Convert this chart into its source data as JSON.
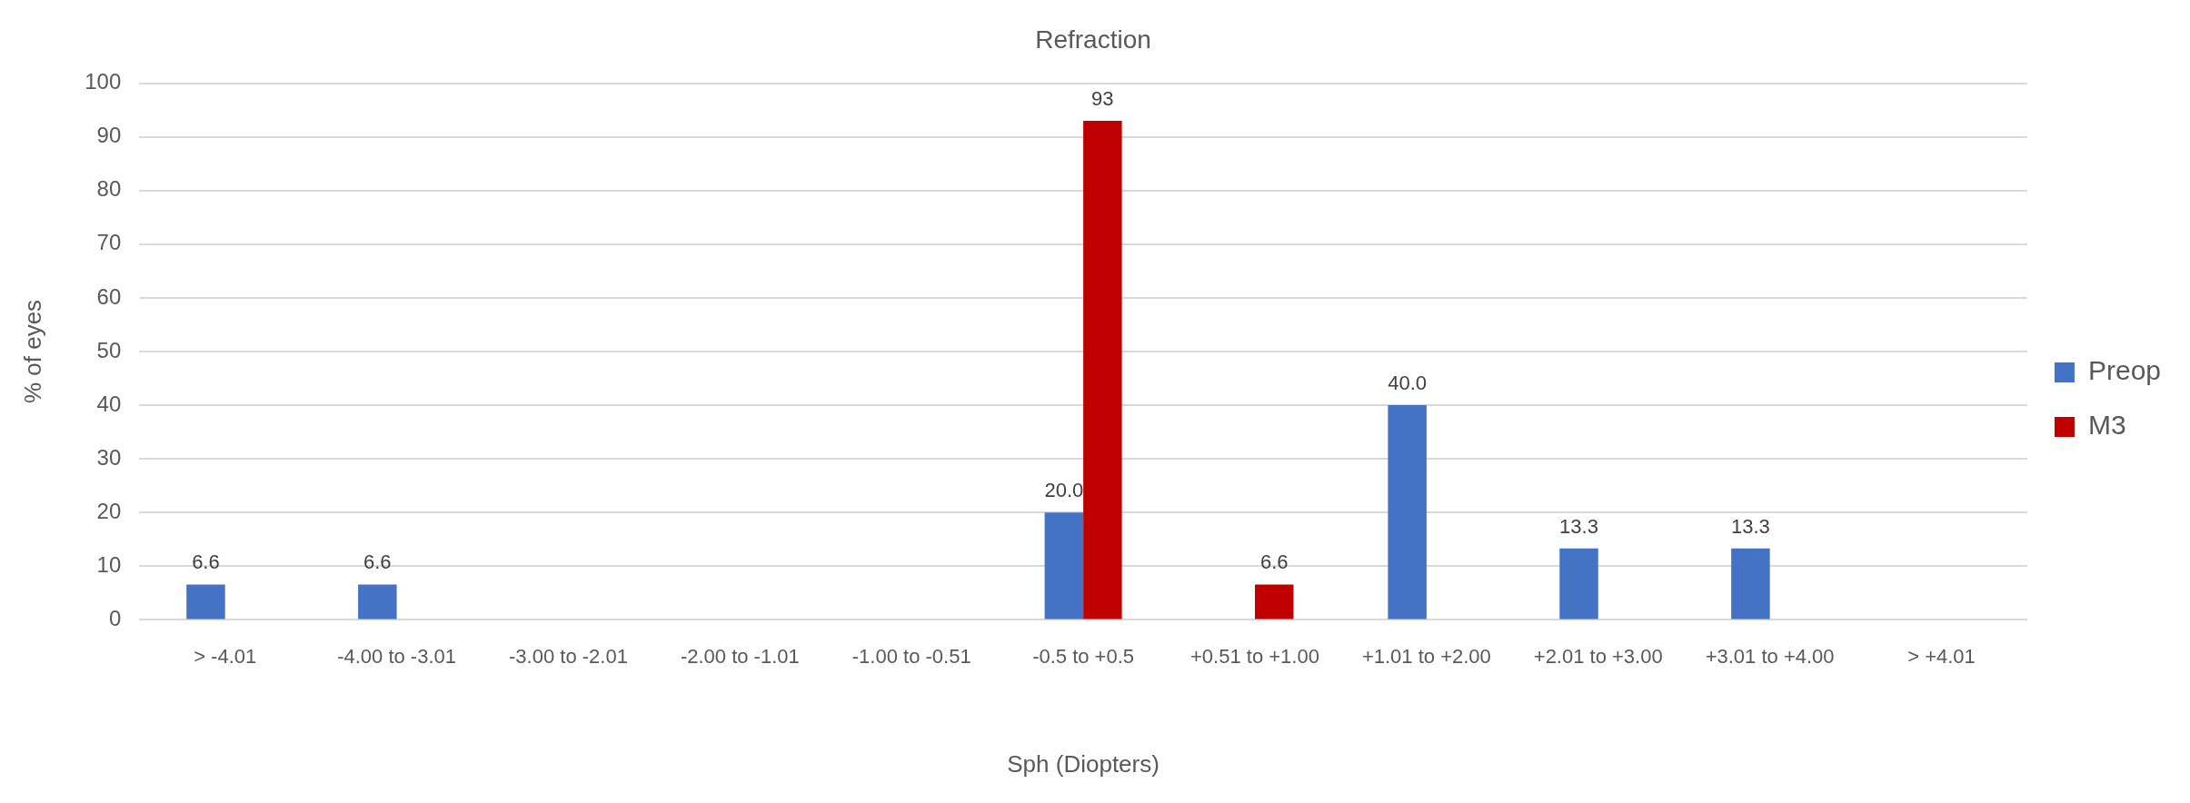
{
  "chart_data": {
    "type": "bar",
    "title": "Refraction",
    "xlabel": "Sph (Diopters)",
    "ylabel": "% of eyes",
    "categories": [
      "> -4.01",
      "-4.00 to -3.01",
      "-3.00 to -2.01",
      "-2.00 to -1.01",
      "-1.00 to -0.51",
      "-0.5 to +0.5",
      "+0.51 to +1.00",
      "+1.01 to +2.00",
      "+2.01 to +3.00",
      "+3.01 to +4.00",
      "> +4.01"
    ],
    "series": [
      {
        "name": "Preop",
        "color": "#4472c4",
        "values": [
          6.6,
          6.6,
          null,
          null,
          null,
          20.0,
          null,
          40.0,
          13.3,
          13.3,
          null
        ],
        "value_labels": [
          "6.6",
          "6.6",
          null,
          null,
          null,
          "20.0",
          null,
          "40.0",
          "13.3",
          "13.3",
          null
        ]
      },
      {
        "name": "M3",
        "color": "#c00000",
        "values": [
          null,
          null,
          null,
          null,
          null,
          93,
          6.6,
          null,
          null,
          null,
          null
        ],
        "value_labels": [
          null,
          null,
          null,
          null,
          null,
          "93",
          "6.6",
          null,
          null,
          null,
          null
        ]
      }
    ],
    "ylim": [
      0,
      100
    ],
    "yticks": [
      0,
      10,
      20,
      30,
      40,
      50,
      60,
      70,
      80,
      90,
      100
    ],
    "grid": "y",
    "legend": "right"
  }
}
